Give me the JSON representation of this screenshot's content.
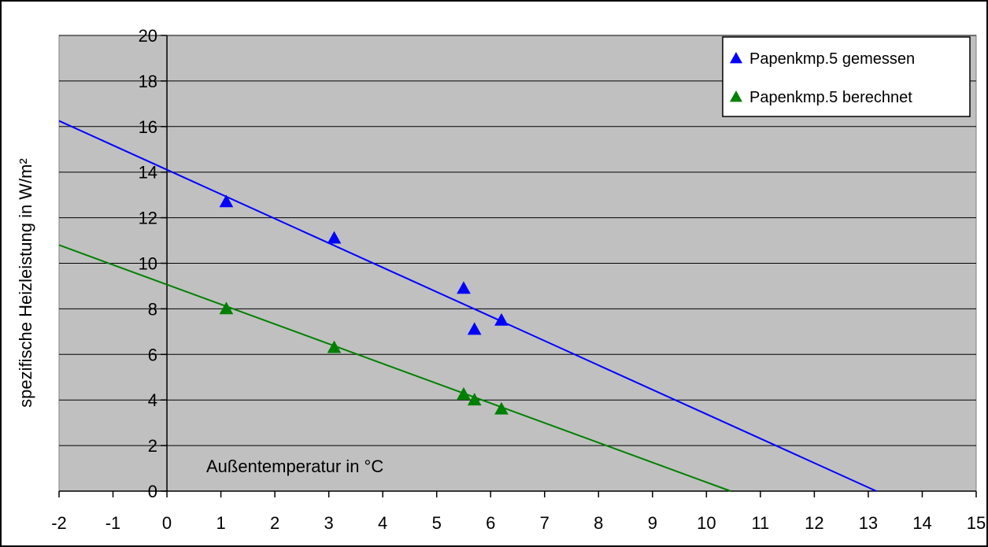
{
  "chart_data": {
    "type": "scatter",
    "title": "",
    "xlabel": "Außentemperatur in °C",
    "ylabel": "spezifische Heizleistung in W/m²",
    "xlim": [
      -2,
      15
    ],
    "ylim": [
      0,
      20
    ],
    "x_ticks": [
      -2,
      -1,
      0,
      1,
      2,
      3,
      4,
      5,
      6,
      7,
      8,
      9,
      10,
      11,
      12,
      13,
      14,
      15
    ],
    "y_ticks": [
      0,
      2,
      4,
      6,
      8,
      10,
      12,
      14,
      16,
      18,
      20
    ],
    "grid": "horizontal",
    "legend_position": "top-right",
    "plot_background": "#c0c0c0",
    "series": [
      {
        "name": "Papenkmp.5 gemessen",
        "color": "#0000ff",
        "marker": "triangle",
        "points": [
          {
            "x": 1.1,
            "y": 12.7
          },
          {
            "x": 3.1,
            "y": 11.1
          },
          {
            "x": 5.5,
            "y": 8.9
          },
          {
            "x": 5.7,
            "y": 7.1
          },
          {
            "x": 6.2,
            "y": 7.5
          }
        ],
        "trendline": {
          "x0": -2,
          "y0": 16.25,
          "x1": 13.15,
          "y1": 0
        }
      },
      {
        "name": "Papenkmp.5 berechnet",
        "color": "#008000",
        "marker": "triangle",
        "points": [
          {
            "x": 1.1,
            "y": 8.0
          },
          {
            "x": 3.1,
            "y": 6.3
          },
          {
            "x": 5.5,
            "y": 4.25
          },
          {
            "x": 5.7,
            "y": 4.0
          },
          {
            "x": 6.2,
            "y": 3.6
          }
        ],
        "trendline": {
          "x0": -2,
          "y0": 10.8,
          "x1": 10.45,
          "y1": 0
        }
      }
    ]
  }
}
